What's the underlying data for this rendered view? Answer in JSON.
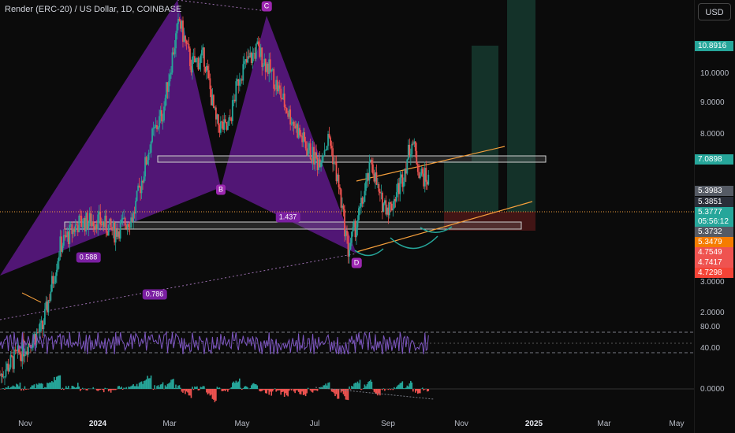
{
  "header": {
    "title": "Render (ERC-20) / US Dollar, 1D, COINBASE",
    "currency_button": "USD"
  },
  "colors": {
    "up": "#26a69a",
    "down": "#ef5350",
    "pattern_fill": "#7b1fa2",
    "trendline": "#f6a03c",
    "rsi_line": "#7e57c2",
    "current_price_line": "#f6a03c"
  },
  "price_axis": {
    "ticks": [
      "10.0000",
      "9.0000",
      "8.0000",
      "3.0000",
      "2.0000"
    ],
    "tags": [
      {
        "value": "10.8916",
        "color": "#26a69a"
      },
      {
        "value": "7.0898",
        "color": "#26a69a"
      },
      {
        "value": "5.3983",
        "color": "#555a64"
      },
      {
        "value": "5.3851",
        "color": "#2a2e39"
      },
      {
        "value": "5.3777",
        "color": "#26a69a"
      },
      {
        "value": "05:56:12",
        "color": "#26a69a"
      },
      {
        "value": "5.3732",
        "color": "#555a64"
      },
      {
        "value": "5.3479",
        "color": "#f57c00"
      },
      {
        "value": "4.7549",
        "color": "#ef5350"
      },
      {
        "value": "4.7417",
        "color": "#ef5350"
      },
      {
        "value": "4.7298",
        "color": "#f44336"
      }
    ]
  },
  "rsi_axis": {
    "ticks": [
      "80.00",
      "40.00"
    ]
  },
  "macd_axis": {
    "ticks": [
      "0.0000"
    ]
  },
  "time_axis": {
    "ticks": [
      {
        "label": "Nov",
        "year": false
      },
      {
        "label": "2024",
        "year": true
      },
      {
        "label": "Mar",
        "year": false
      },
      {
        "label": "May",
        "year": false
      },
      {
        "label": "Jul",
        "year": false
      },
      {
        "label": "Sep",
        "year": false
      },
      {
        "label": "Nov",
        "year": false
      },
      {
        "label": "2025",
        "year": true
      },
      {
        "label": "Mar",
        "year": false
      },
      {
        "label": "May",
        "year": false
      }
    ]
  },
  "pattern": {
    "points": [
      "B",
      "C",
      "D"
    ],
    "fib_ratios": [
      "0.588",
      "0.786",
      "1.437"
    ]
  },
  "chart_data": {
    "type": "candlestick",
    "symbol": "Render (ERC-20) / US Dollar",
    "interval": "1D",
    "exchange": "COINBASE",
    "y_scale": "log",
    "x_range": [
      "2023-10-15",
      "2025-05-25"
    ],
    "key_prices": {
      "B": 4.9,
      "C": 13.1,
      "D": 3.3,
      "current": 5.3777
    },
    "price_path": [
      [
        "2023-10-15",
        1.75
      ],
      [
        "2023-11-01",
        2.0
      ],
      [
        "2023-11-20",
        2.3
      ],
      [
        "2023-12-05",
        3.7
      ],
      [
        "2023-12-20",
        4.2
      ],
      [
        "2024-01-05",
        4.3
      ],
      [
        "2024-01-20",
        4.0
      ],
      [
        "2024-02-05",
        4.4
      ],
      [
        "2024-02-20",
        6.8
      ],
      [
        "2024-03-01",
        8.0
      ],
      [
        "2024-03-10",
        11.5
      ],
      [
        "2024-03-15",
        13.5
      ],
      [
        "2024-03-25",
        10.5
      ],
      [
        "2024-04-05",
        11.0
      ],
      [
        "2024-04-15",
        7.5
      ],
      [
        "2024-04-25",
        7.2
      ],
      [
        "2024-05-05",
        10.0
      ],
      [
        "2024-05-20",
        11.5
      ],
      [
        "2024-06-01",
        10.0
      ],
      [
        "2024-06-15",
        8.0
      ],
      [
        "2024-07-01",
        6.5
      ],
      [
        "2024-07-10",
        6.0
      ],
      [
        "2024-07-20",
        6.9
      ],
      [
        "2024-07-28",
        5.2
      ],
      [
        "2024-08-05",
        3.6
      ],
      [
        "2024-08-15",
        4.5
      ],
      [
        "2024-08-25",
        6.0
      ],
      [
        "2024-09-01",
        4.8
      ],
      [
        "2024-09-10",
        4.6
      ],
      [
        "2024-09-20",
        5.5
      ],
      [
        "2024-09-28",
        6.8
      ],
      [
        "2024-10-05",
        5.6
      ],
      [
        "2024-10-12",
        5.38
      ]
    ],
    "levels": {
      "resistance_zone": 7.09,
      "support_zone": 5.0
    },
    "rsi_ticks": [
      80,
      40
    ],
    "macd_ticks": [
      0
    ]
  }
}
